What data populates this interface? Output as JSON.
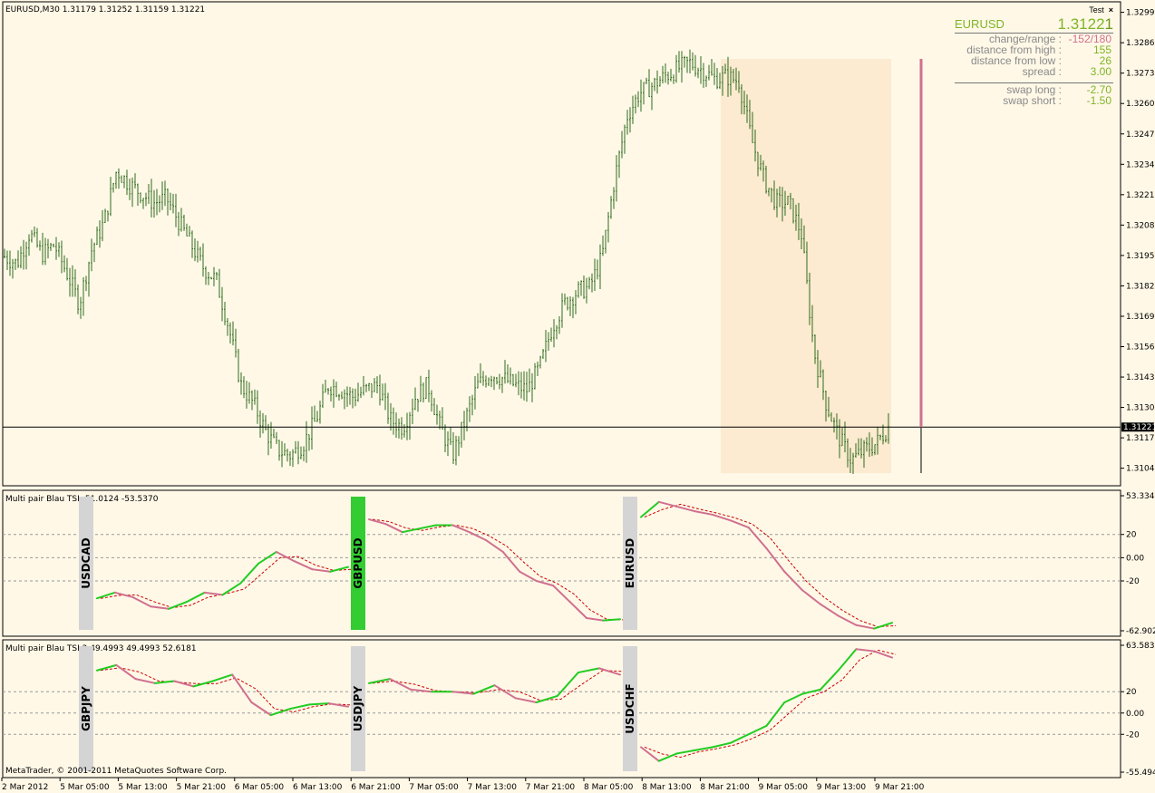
{
  "main": {
    "title": "EURUSD,M30",
    "ohlc": "1.31179 1.31252 1.31159 1.31221",
    "current_price": "1.31221",
    "price_labels": [
      "1.32995",
      "1.32865",
      "1.32735",
      "1.32605",
      "1.32475",
      "1.32345",
      "1.32215",
      "1.32085",
      "1.31955",
      "1.31825",
      "1.31695",
      "1.31565",
      "1.31435",
      "1.31305",
      "1.31175",
      "1.31045"
    ]
  },
  "panel": {
    "header": "Test",
    "close_glyph": "×",
    "symbol": "EURUSD",
    "price_main": "1.3122",
    "price_pip": "1",
    "rows": [
      {
        "label": "change/range :",
        "value": "-152/180",
        "color": "#d0708f"
      },
      {
        "label": "distance from high :",
        "value": "155",
        "color": "#7fb526"
      },
      {
        "label": "distance from low :",
        "value": "26",
        "color": "#7fb526"
      },
      {
        "label": "spread :",
        "value": "3.00",
        "color": "#7fb526"
      }
    ],
    "swap_rows": [
      {
        "label": "swap long :",
        "value": "-2.70",
        "color": "#7fb526"
      },
      {
        "label": "swap short :",
        "value": "-1.50",
        "color": "#7fb526"
      }
    ]
  },
  "ind1": {
    "title": "Multi pair Blau TSI -51.0124 -53.5370",
    "axis": [
      "53.3343",
      "20",
      "0.00",
      "-20",
      "-62.9022"
    ],
    "pairs": [
      "USDCAD",
      "GBPUSD",
      "EURUSD"
    ]
  },
  "ind2": {
    "title": "Multi pair Blau TSI 2 49.4993 49.4993 52.6181",
    "axis": [
      "63.5833",
      "20",
      "0.00",
      "-20",
      "-55.4945"
    ],
    "pairs": [
      "GBPJPY",
      "USDJPY",
      "USDCHF"
    ]
  },
  "footer": "MetaTrader, © 2001-2011 MetaQuotes Software Corp.",
  "time_labels": [
    "2 Mar 2012",
    "5 Mar 05:00",
    "5 Mar 13:00",
    "5 Mar 21:00",
    "6 Mar 05:00",
    "6 Mar 13:00",
    "6 Mar 21:00",
    "7 Mar 05:00",
    "7 Mar 13:00",
    "7 Mar 21:00",
    "8 Mar 05:00",
    "8 Mar 13:00",
    "8 Mar 21:00",
    "9 Mar 05:00",
    "9 Mar 13:00",
    "9 Mar 21:00"
  ],
  "colors": {
    "background": "#fff8e7",
    "bars": "#2f6b1f",
    "tsi_green": "#22cc22",
    "tsi_pink": "#d0708f",
    "signal": "#cc0000",
    "highlight": "#fcebd0",
    "label_gray": "#d4d4d4",
    "label_green": "#33cc33"
  },
  "chart_data": [
    {
      "type": "bar",
      "title": "EURUSD,M30",
      "ylim": [
        1.3097,
        1.3304
      ],
      "x": [
        "2 Mar 2012",
        "5 Mar 05:00",
        "5 Mar 13:00",
        "5 Mar 21:00",
        "6 Mar 05:00",
        "6 Mar 13:00",
        "6 Mar 21:00",
        "7 Mar 05:00",
        "7 Mar 13:00",
        "7 Mar 21:00",
        "8 Mar 05:00",
        "8 Mar 13:00",
        "8 Mar 21:00",
        "9 Mar 05:00",
        "9 Mar 13:00",
        "9 Mar 21:00"
      ],
      "close_path": [
        1.3195,
        1.3192,
        1.3205,
        1.3196,
        1.32,
        1.3188,
        1.3175,
        1.3198,
        1.321,
        1.3232,
        1.3226,
        1.3222,
        1.3218,
        1.322,
        1.321,
        1.32,
        1.319,
        1.3185,
        1.3165,
        1.314,
        1.3132,
        1.312,
        1.3112,
        1.311,
        1.3115,
        1.3125,
        1.314,
        1.3138,
        1.3135,
        1.3138,
        1.314,
        1.3125,
        1.3122,
        1.3135,
        1.314,
        1.3122,
        1.311,
        1.3125,
        1.314,
        1.3145,
        1.3143,
        1.314,
        1.3138,
        1.3148,
        1.3165,
        1.3175,
        1.318,
        1.3182,
        1.3195,
        1.3228,
        1.3255,
        1.3265,
        1.3268,
        1.3272,
        1.3275,
        1.3278,
        1.3275,
        1.3271,
        1.3272,
        1.327,
        1.3245,
        1.3228,
        1.3218,
        1.3218,
        1.3205,
        1.3155,
        1.3132,
        1.3118,
        1.3108,
        1.3112,
        1.3115,
        1.3122
      ]
    },
    {
      "type": "line",
      "title": "Multi pair Blau TSI -51.0124 -53.5370",
      "ylim": [
        -62.9022,
        53.3343
      ],
      "series": [
        {
          "name": "USDCAD",
          "values": [
            -35,
            -30,
            -34,
            -42,
            -44,
            -38,
            -30,
            -32,
            -22,
            -5,
            5,
            -3,
            -10,
            -12,
            -8
          ]
        },
        {
          "name": "GBPUSD",
          "values": [
            33,
            29,
            22,
            25,
            28,
            28,
            22,
            15,
            5,
            -12,
            -20,
            -24,
            -38,
            -52,
            -54,
            -53
          ]
        },
        {
          "name": "EURUSD",
          "values": [
            35,
            48,
            44,
            40,
            37,
            32,
            26,
            8,
            -12,
            -28,
            -40,
            -50,
            -58,
            -61,
            -56
          ]
        }
      ]
    },
    {
      "type": "line",
      "title": "Multi pair Blau TSI 2 49.4993 49.4993 52.6181",
      "ylim": [
        -55.4945,
        63.5833
      ],
      "series": [
        {
          "name": "GBPJPY",
          "values": [
            40,
            45,
            32,
            28,
            30,
            25,
            30,
            36,
            10,
            -2,
            4,
            8,
            9,
            6
          ]
        },
        {
          "name": "USDJPY",
          "values": [
            28,
            32,
            22,
            20,
            20,
            18,
            26,
            14,
            10,
            16,
            38,
            42,
            36
          ]
        },
        {
          "name": "USDCHF",
          "values": [
            -32,
            -45,
            -38,
            -35,
            -32,
            -28,
            -20,
            -12,
            10,
            18,
            22,
            40,
            60,
            58,
            52
          ]
        }
      ]
    }
  ]
}
